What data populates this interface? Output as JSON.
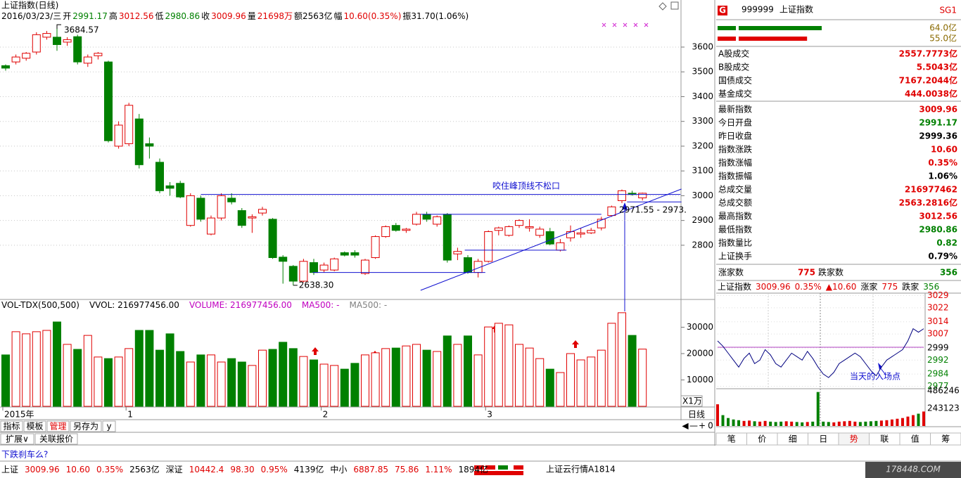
{
  "header": {
    "title": "上证指数(日线)",
    "info": [
      {
        "text": "2016/03/23/三",
        "color": "#000000"
      },
      {
        "text": "开",
        "color": "#000000"
      },
      {
        "text": "2991.17",
        "color": "#008000"
      },
      {
        "text": "高",
        "color": "#000000"
      },
      {
        "text": "3012.56",
        "color": "#e00000"
      },
      {
        "text": "低",
        "color": "#000000"
      },
      {
        "text": "2980.86",
        "color": "#008000"
      },
      {
        "text": "收",
        "color": "#000000"
      },
      {
        "text": "3009.96",
        "color": "#e00000"
      },
      {
        "text": "量",
        "color": "#000000"
      },
      {
        "text": "21698万",
        "color": "#e00000"
      },
      {
        "text": "额2563亿",
        "color": "#000000"
      },
      {
        "text": "幅",
        "color": "#000000"
      },
      {
        "text": "10.60(0.35%)",
        "color": "#e00000"
      },
      {
        "text": "振31.70(1.06%)",
        "color": "#000000"
      }
    ]
  },
  "volume_header": [
    {
      "text": "VOL-TDX(500,500)",
      "color": "#000000"
    },
    {
      "text": "VVOL: 216977456.00",
      "color": "#000000"
    },
    {
      "text": "VOLUME: 216977456.00",
      "color": "#c000c0"
    },
    {
      "text": "MA500: -",
      "color": "#c000c0"
    },
    {
      "text": "MA500: -",
      "color": "#808080"
    }
  ],
  "chart_data": [
    {
      "type": "candlestick",
      "categories": [
        "2015年",
        null,
        null,
        null,
        null,
        null,
        null,
        null,
        null,
        null,
        null,
        null,
        "1",
        null,
        null,
        null,
        null,
        null,
        null,
        null,
        null,
        null,
        null,
        null,
        null,
        null,
        null,
        null,
        null,
        null,
        null,
        "2",
        null,
        null,
        null,
        null,
        null,
        null,
        null,
        null,
        null,
        null,
        null,
        null,
        null,
        null,
        null,
        "3",
        null,
        null,
        null,
        null,
        null,
        null,
        null,
        null,
        null,
        null,
        null,
        null,
        null,
        null,
        null
      ],
      "open": [
        3525,
        3540,
        3555,
        3580,
        3640,
        3640,
        3620,
        3642,
        3535,
        3565,
        3540,
        3200,
        3210,
        3310,
        3210,
        3135,
        3040,
        3050,
        2880,
        2990,
        2845,
        2910,
        2990,
        2940,
        2910,
        2930,
        2905,
        2752,
        2715,
        2655,
        2730,
        2700,
        2700,
        2770,
        2770,
        2686,
        2750,
        2835,
        2880,
        2860,
        2885,
        2925,
        2885,
        2925,
        2765,
        2750,
        2690,
        2735,
        2860,
        2840,
        2880,
        2870,
        2840,
        2855,
        2780,
        2830,
        2845,
        2850,
        2870,
        2920,
        2980,
        3010,
        2991.17
      ],
      "high": [
        3530,
        3570,
        3580,
        3660,
        3665,
        3684.57,
        3640,
        3650,
        3570,
        3580,
        3545,
        3300,
        3375,
        3330,
        3235,
        3150,
        3055,
        3060,
        3010,
        3000,
        2920,
        3010,
        3010,
        2950,
        2925,
        2955,
        2910,
        2760,
        2720,
        2745,
        2745,
        2730,
        2750,
        2775,
        2780,
        2745,
        2840,
        2880,
        2890,
        2870,
        2935,
        2935,
        2920,
        2930,
        2790,
        2760,
        2745,
        2860,
        2875,
        2880,
        2905,
        2905,
        2875,
        2870,
        2825,
        2880,
        2870,
        2870,
        2915,
        2960,
        3025,
        3020,
        3012.56
      ],
      "low": [
        3505,
        3530,
        3545,
        3570,
        3630,
        3585,
        3605,
        3530,
        3520,
        3550,
        3215,
        3190,
        3200,
        3110,
        3150,
        3010,
        3000,
        2990,
        2875,
        2895,
        2840,
        2900,
        2965,
        2870,
        2850,
        2920,
        2745,
        2645,
        2638.3,
        2650,
        2680,
        2690,
        2695,
        2755,
        2750,
        2680,
        2745,
        2830,
        2855,
        2850,
        2880,
        2895,
        2875,
        2730,
        2740,
        2685,
        2670,
        2730,
        2840,
        2835,
        2870,
        2855,
        2830,
        2800,
        2775,
        2815,
        2830,
        2845,
        2860,
        2915,
        2970,
        3000,
        2980.86
      ],
      "close": [
        3515,
        3560,
        3575,
        3650,
        3655,
        3610,
        3630,
        3540,
        3560,
        3575,
        3222,
        3285,
        3365,
        3125,
        3200,
        3020,
        3030,
        2995,
        3000,
        2905,
        2910,
        3000,
        2975,
        2880,
        2915,
        2945,
        2750,
        2735,
        2655,
        2735,
        2690,
        2720,
        2745,
        2760,
        2760,
        2740,
        2835,
        2875,
        2860,
        2865,
        2925,
        2905,
        2915,
        2740,
        2775,
        2690,
        2735,
        2855,
        2870,
        2875,
        2900,
        2875,
        2865,
        2805,
        2810,
        2855,
        2850,
        2860,
        2905,
        2955,
        3020,
        3005,
        3009.96
      ],
      "up_color": "#e00000",
      "down_color": "#008000",
      "ylim": [
        2584,
        3739
      ],
      "yticks": [
        2800,
        2900,
        3000,
        3100,
        3200,
        3300,
        3400,
        3500,
        3600
      ],
      "grid": true,
      "max_label": "3684.57",
      "min_label": "2638.30",
      "notes": [
        "咬住峰顶线不松口",
        "2971.55 - 2973."
      ],
      "ref_lines": [
        {
          "x": [
            19,
            65.7
          ],
          "y": [
            3005,
            3005
          ]
        },
        {
          "x": [
            40.4,
            58
          ],
          "y": [
            2925,
            2925
          ]
        },
        {
          "x": [
            44.7,
            54.6
          ],
          "y": [
            2780,
            2780
          ]
        },
        {
          "x": [
            29.9,
            46.7
          ],
          "y": [
            2690,
            2690
          ]
        },
        {
          "x": [
            40.4,
            65.8
          ],
          "y": [
            2618,
            3027
          ]
        },
        {
          "x": [
            60.5,
            65.8
          ],
          "y": [
            2975,
            2975
          ]
        }
      ],
      "ref_color": "#1010d0"
    },
    {
      "type": "bar",
      "values": [
        19500,
        28300,
        27500,
        28300,
        28800,
        32000,
        23500,
        21600,
        26900,
        18700,
        18100,
        18700,
        21900,
        28800,
        28800,
        21300,
        27500,
        20800,
        16800,
        19500,
        19500,
        16800,
        18100,
        16800,
        15500,
        21300,
        21600,
        24300,
        21900,
        18900,
        17600,
        16000,
        15500,
        14100,
        16300,
        19500,
        20300,
        21900,
        22100,
        22900,
        23500,
        21300,
        20800,
        26700,
        23500,
        26700,
        19500,
        30100,
        31500,
        30900,
        23500,
        22100,
        18100,
        14100,
        12800,
        20000,
        17600,
        18700,
        21300,
        31500,
        35500,
        26900,
        21698
      ],
      "ylim": [
        0,
        40000
      ],
      "yticks": [
        10000,
        20000,
        30000
      ],
      "unit_label": "X1万"
    },
    {
      "type": "line",
      "values": [
        3003,
        3000,
        2996,
        2992,
        2988,
        2993,
        2996,
        2990,
        2992,
        2998,
        2995,
        2990,
        2988,
        2992,
        2996,
        2994,
        2992,
        2997,
        2993,
        2988,
        2984,
        2982,
        2985,
        2990,
        2992,
        2994,
        2996,
        2994,
        2990,
        2986,
        2983,
        2988,
        2992,
        2994,
        2996,
        2998,
        3003,
        3010,
        3008,
        3010
      ],
      "color": "#000080",
      "baseline": 2999.36,
      "baseline_color": "#b040c0",
      "ylim": [
        2976,
        3030
      ],
      "yticks": [
        3029,
        3022,
        3014,
        3007,
        2999,
        2992,
        2984,
        2977
      ],
      "note": "当天的入场点"
    },
    {
      "type": "bar",
      "values": [
        300000,
        150000,
        110000,
        90000,
        80000,
        70000,
        75000,
        65000,
        60000,
        70000,
        60000,
        55000,
        60000,
        65000,
        60000,
        55000,
        50000,
        55000,
        60000,
        470000,
        60000,
        55000,
        50000,
        60000,
        65000,
        70000,
        60000,
        55000,
        60000,
        65000,
        70000,
        75000,
        80000,
        90000,
        100000,
        110000,
        130000,
        150000,
        170000,
        200000
      ],
      "ylim": [
        0,
        486246
      ],
      "yticks": [
        486246,
        243123
      ]
    }
  ],
  "side_panel": {
    "badge": "G",
    "code": "999999",
    "name": "上证指数",
    "tag": "SG1",
    "bars": [
      {
        "value": 64.0,
        "label": "64.0亿",
        "color": "#008000"
      },
      {
        "value": 55.0,
        "label": "55.0亿",
        "color": "#e00000"
      }
    ],
    "rows": [
      [
        "A股成交",
        "2557.7773亿",
        "#e00000"
      ],
      [
        "B股成交",
        "5.5043亿",
        "#e00000"
      ],
      [
        "国债成交",
        "7167.2044亿",
        "#e00000"
      ],
      [
        "基金成交",
        "444.0038亿",
        "#e00000"
      ],
      [
        "最新指数",
        "3009.96",
        "#e00000"
      ],
      [
        "今日开盘",
        "2991.17",
        "#008000"
      ],
      [
        "昨日收盘",
        "2999.36",
        "#000000"
      ],
      [
        "指数涨跌",
        "10.60",
        "#e00000"
      ],
      [
        "指数涨幅",
        "0.35%",
        "#e00000"
      ],
      [
        "指数振幅",
        "1.06%",
        "#000000"
      ],
      [
        "总成交量",
        "216977462",
        "#e00000"
      ],
      [
        "总成交额",
        "2563.2816亿",
        "#e00000"
      ],
      [
        "最高指数",
        "3012.56",
        "#e00000"
      ],
      [
        "最低指数",
        "2980.86",
        "#008000"
      ],
      [
        "指数量比",
        "0.82",
        "#008000"
      ],
      [
        "上证换手",
        "0.79%",
        "#000000"
      ]
    ],
    "breadth": [
      {
        "text": "涨家数",
        "color": "#000000"
      },
      {
        "text": "775",
        "color": "#e00000"
      },
      {
        "text": "跌家数",
        "color": "#000000"
      },
      {
        "text": "356",
        "color": "#008000"
      }
    ],
    "mini_header": [
      {
        "text": "上证指数",
        "color": "#000000"
      },
      {
        "text": "3009.96",
        "color": "#e00000"
      },
      {
        "text": "0.35%",
        "color": "#e00000"
      },
      {
        "text": "▲10.60",
        "color": "#e00000"
      },
      {
        "text": "涨家",
        "color": "#000000"
      },
      {
        "text": "775",
        "color": "#e00000"
      },
      {
        "text": "跌家",
        "color": "#000000"
      },
      {
        "text": "356",
        "color": "#008000"
      }
    ],
    "tabs": [
      "笔",
      "价",
      "细",
      "日",
      "势",
      "联",
      "值",
      "筹"
    ],
    "active_tab": 4
  },
  "toolbar": {
    "tabs": [
      "指标",
      "模板",
      "管理",
      "另存为",
      "y"
    ],
    "active_tab": 2,
    "tabs2": [
      "扩展∨",
      "关联报价"
    ],
    "period": "日线",
    "controls": [
      "◀",
      "—",
      "+",
      "0"
    ]
  },
  "note": "下跌刹车么?",
  "status_bar": [
    {
      "text": "上证",
      "color": "#000000"
    },
    {
      "text": "3009.96",
      "color": "#e00000"
    },
    {
      "text": "10.60",
      "color": "#e00000"
    },
    {
      "text": "0.35%",
      "color": "#e00000"
    },
    {
      "text": "2563亿",
      "color": "#000000"
    },
    {
      "text": "深证",
      "color": "#000000"
    },
    {
      "text": "10442.4",
      "color": "#e00000"
    },
    {
      "text": "98.30",
      "color": "#e00000"
    },
    {
      "text": "0.95%",
      "color": "#e00000"
    },
    {
      "text": "4139亿",
      "color": "#000000"
    },
    {
      "text": "中小",
      "color": "#000000"
    },
    {
      "text": "6887.85",
      "color": "#e00000"
    },
    {
      "text": "75.86",
      "color": "#e00000"
    },
    {
      "text": "1.11%",
      "color": "#e00000"
    },
    {
      "text": "1894亿",
      "color": "#000000"
    }
  ],
  "status_right": "上证云行情A1814",
  "watermark": "178448.COM"
}
